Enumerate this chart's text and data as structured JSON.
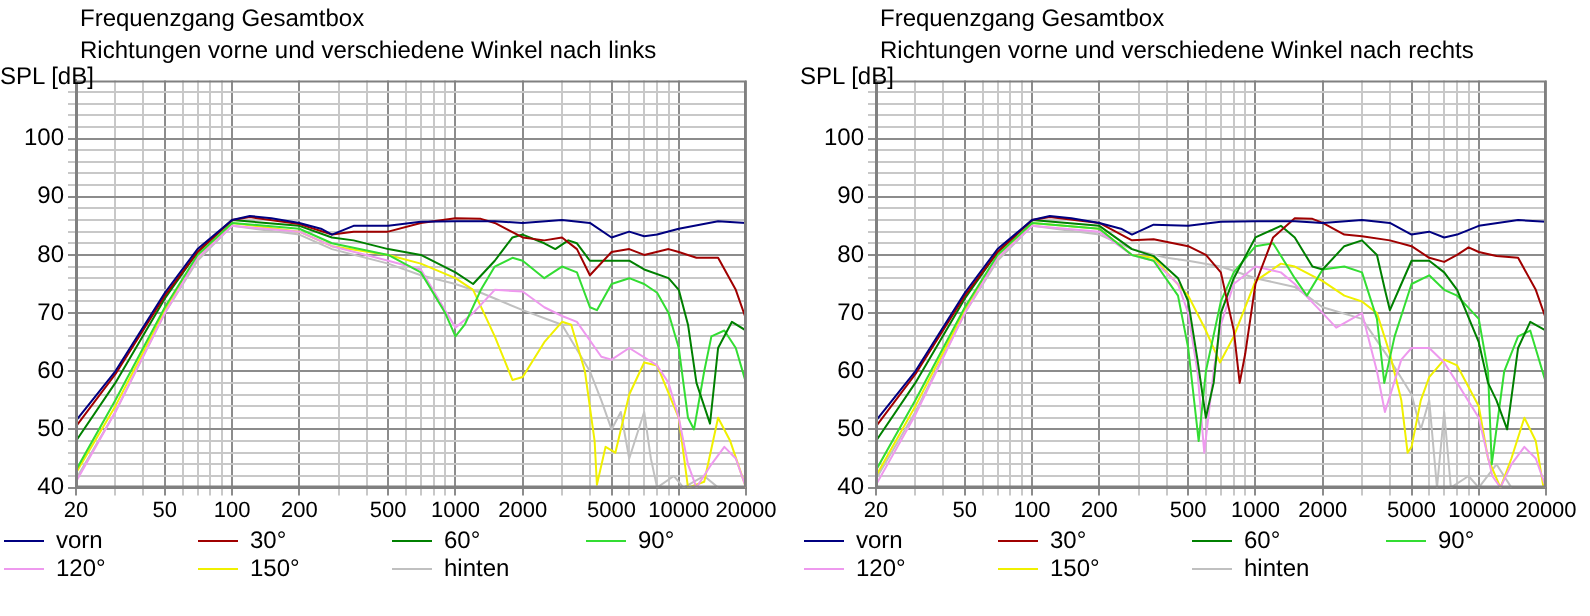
{
  "chart_data": [
    {
      "type": "line",
      "title": "Frequenzgang Gesamtbox",
      "subtitle": "Richtungen vorne und verschiedene Winkel nach links",
      "ylabel": "SPL [dB]",
      "log": "x",
      "grid": true,
      "legend": "bottom",
      "marker": "none",
      "line_style": "solid",
      "xlim": [
        20,
        20000
      ],
      "xticks": [
        20,
        {
          "value": 30,
          "label": null
        },
        {
          "value": 40,
          "label": null
        },
        50,
        {
          "value": 60,
          "label": null
        },
        {
          "value": 70,
          "label": null
        },
        {
          "value": 80,
          "label": null
        },
        {
          "value": 90,
          "label": null
        },
        100,
        200,
        {
          "value": 300,
          "label": null
        },
        {
          "value": 400,
          "label": null
        },
        500,
        {
          "value": 600,
          "label": null
        },
        {
          "value": 700,
          "label": null
        },
        {
          "value": 800,
          "label": null
        },
        {
          "value": 900,
          "label": null
        },
        1000,
        2000,
        {
          "value": 3000,
          "label": null
        },
        {
          "value": 4000,
          "label": null
        },
        5000,
        {
          "value": 6000,
          "label": null
        },
        {
          "value": 7000,
          "label": null
        },
        {
          "value": 8000,
          "label": null
        },
        {
          "value": 9000,
          "label": null
        },
        10000,
        20000
      ],
      "ylim": [
        40,
        110
      ],
      "yticks": [
        40,
        {
          "value": 42,
          "label": null
        },
        {
          "value": 44,
          "label": null
        },
        {
          "value": 46,
          "label": null
        },
        {
          "value": 48,
          "label": null
        },
        50,
        {
          "value": 52,
          "label": null
        },
        {
          "value": 54,
          "label": null
        },
        {
          "value": 56,
          "label": null
        },
        {
          "value": 58,
          "label": null
        },
        60,
        {
          "value": 62,
          "label": null
        },
        {
          "value": 64,
          "label": null
        },
        {
          "value": 66,
          "label": null
        },
        {
          "value": 68,
          "label": null
        },
        70,
        {
          "value": 72,
          "label": null
        },
        {
          "value": 74,
          "label": null
        },
        {
          "value": 76,
          "label": null
        },
        {
          "value": 78,
          "label": null
        },
        80,
        {
          "value": 82,
          "label": null
        },
        {
          "value": 84,
          "label": null
        },
        {
          "value": 86,
          "label": null
        },
        {
          "value": 88,
          "label": null
        },
        90,
        {
          "value": 92,
          "label": null
        },
        {
          "value": 94,
          "label": null
        },
        {
          "value": 96,
          "label": null
        },
        {
          "value": 98,
          "label": null
        },
        100,
        {
          "value": 102,
          "label": null
        },
        {
          "value": 104,
          "label": null
        },
        {
          "value": 106,
          "label": null
        },
        {
          "value": 108,
          "label": null
        }
      ],
      "series": [
        {
          "name": "vorn",
          "color": "#000080",
          "x": [
            20,
            30,
            50,
            70,
            100,
            120,
            150,
            200,
            250,
            280,
            350,
            500,
            700,
            1000,
            1500,
            2000,
            3000,
            4000,
            5000,
            6000,
            7000,
            8000,
            10000,
            15000,
            20000
          ],
          "values": [
            51.5,
            60,
            73.5,
            81,
            86,
            86.7,
            86.3,
            85.5,
            84.5,
            83.5,
            85,
            85,
            85.7,
            85.8,
            85.8,
            85.5,
            86,
            85.5,
            83,
            84,
            83.2,
            83.5,
            84.5,
            85.8,
            85.5
          ]
        },
        {
          "name": "30°",
          "color": "#a00000",
          "x": [
            20,
            30,
            50,
            70,
            100,
            120,
            200,
            280,
            350,
            500,
            700,
            1000,
            1300,
            1500,
            2000,
            2500,
            3000,
            3500,
            4000,
            5000,
            6000,
            7000,
            9000,
            10000,
            12000,
            15000,
            18000,
            20000
          ],
          "values": [
            50.5,
            59.5,
            73,
            80.5,
            86,
            86.5,
            85.3,
            83.5,
            84,
            84,
            85.5,
            86.3,
            86.2,
            85.5,
            83,
            82.5,
            83,
            81,
            76.5,
            80.5,
            81,
            80,
            81,
            80.5,
            79.5,
            79.5,
            74,
            69
          ]
        },
        {
          "name": "60°",
          "color": "#008000",
          "x": [
            20,
            30,
            50,
            70,
            100,
            200,
            280,
            350,
            500,
            700,
            1000,
            1200,
            1500,
            1800,
            2000,
            2500,
            2800,
            3200,
            3500,
            4000,
            5000,
            6000,
            7000,
            9000,
            10000,
            11000,
            12000,
            13800,
            15000,
            17300,
            20000
          ],
          "values": [
            48,
            58,
            72.5,
            80.5,
            86,
            85,
            83,
            82.5,
            81,
            80,
            77,
            75,
            79,
            83,
            83.5,
            82,
            81,
            82.5,
            82,
            79,
            79,
            79,
            77.5,
            76,
            74,
            68,
            58,
            51,
            64,
            68.5,
            67
          ]
        },
        {
          "name": "90°",
          "color": "#33dd33",
          "x": [
            20,
            30,
            50,
            70,
            100,
            200,
            280,
            500,
            700,
            900,
            1000,
            1100,
            1300,
            1500,
            1800,
            2000,
            2500,
            3000,
            3500,
            4000,
            4300,
            5000,
            6000,
            7000,
            8000,
            9000,
            10000,
            11000,
            11700,
            13000,
            14000,
            16000,
            18000,
            20000
          ],
          "values": [
            43,
            55,
            71,
            80,
            85.5,
            84.5,
            82,
            80,
            77,
            70,
            66,
            68,
            74,
            78,
            79.5,
            79,
            76,
            78,
            77,
            71,
            70.5,
            75,
            76,
            75,
            73.5,
            70,
            64,
            52,
            50,
            60,
            66,
            67,
            64,
            58
          ]
        },
        {
          "name": "120°",
          "color": "#ee99ee",
          "x": [
            20,
            30,
            50,
            70,
            100,
            200,
            280,
            500,
            700,
            1000,
            1200,
            1500,
            2000,
            2500,
            3000,
            3500,
            4500,
            5000,
            6000,
            8000,
            9000,
            10000,
            11000,
            12000,
            14000,
            16000,
            18000,
            20000
          ],
          "values": [
            41,
            53,
            70,
            79.5,
            85,
            84,
            81.5,
            79,
            77.5,
            67.5,
            70,
            74,
            73.7,
            71,
            69.5,
            68.5,
            62.5,
            62,
            64,
            61,
            58,
            52,
            44,
            40,
            44,
            47,
            45,
            40
          ]
        },
        {
          "name": "150°",
          "color": "#f0f000",
          "x": [
            20,
            30,
            50,
            70,
            100,
            200,
            280,
            500,
            700,
            1000,
            1200,
            1500,
            1800,
            2000,
            2500,
            3000,
            3300,
            3800,
            4200,
            4300,
            4700,
            5200,
            6000,
            7000,
            8000,
            10000,
            11000,
            13000,
            15000,
            17000,
            20000
          ],
          "values": [
            42.5,
            54,
            70.5,
            79.5,
            85.5,
            84,
            81.5,
            80,
            78.5,
            76,
            74,
            66,
            58.5,
            59,
            65,
            68.5,
            68,
            60,
            48,
            40.5,
            47,
            46,
            56,
            61.5,
            61,
            52,
            40,
            41,
            52,
            48,
            40
          ]
        },
        {
          "name": "hinten",
          "color": "#c0c0c0",
          "x": [
            20,
            30,
            50,
            70,
            100,
            200,
            280,
            500,
            700,
            1000,
            1300,
            1500,
            2000,
            3000,
            4000,
            4500,
            5000,
            5500,
            6000,
            7000,
            7500,
            8000,
            9500,
            10500,
            13000,
            15000
          ],
          "values": [
            41.5,
            53,
            70,
            79,
            85,
            83.5,
            81,
            78.5,
            76.5,
            75,
            73.5,
            72.5,
            70.5,
            68,
            60,
            55,
            50,
            53,
            45,
            53,
            45,
            40,
            42,
            40,
            42,
            40
          ]
        }
      ]
    },
    {
      "type": "line",
      "title": "Frequenzgang Gesamtbox",
      "subtitle": "Richtungen vorne und verschiedene Winkel nach rechts",
      "ylabel": "SPL [dB]",
      "log": "x",
      "grid": true,
      "legend": "bottom",
      "marker": "none",
      "line_style": "solid",
      "xlim": [
        20,
        20000
      ],
      "xticks": [
        20,
        {
          "value": 30,
          "label": null
        },
        {
          "value": 40,
          "label": null
        },
        50,
        {
          "value": 60,
          "label": null
        },
        {
          "value": 70,
          "label": null
        },
        {
          "value": 80,
          "label": null
        },
        {
          "value": 90,
          "label": null
        },
        100,
        200,
        {
          "value": 300,
          "label": null
        },
        {
          "value": 400,
          "label": null
        },
        500,
        {
          "value": 600,
          "label": null
        },
        {
          "value": 700,
          "label": null
        },
        {
          "value": 800,
          "label": null
        },
        {
          "value": 900,
          "label": null
        },
        1000,
        2000,
        {
          "value": 3000,
          "label": null
        },
        {
          "value": 4000,
          "label": null
        },
        5000,
        {
          "value": 6000,
          "label": null
        },
        {
          "value": 7000,
          "label": null
        },
        {
          "value": 8000,
          "label": null
        },
        {
          "value": 9000,
          "label": null
        },
        10000,
        20000
      ],
      "ylim": [
        40,
        110
      ],
      "yticks": [
        40,
        {
          "value": 42,
          "label": null
        },
        {
          "value": 44,
          "label": null
        },
        {
          "value": 46,
          "label": null
        },
        {
          "value": 48,
          "label": null
        },
        50,
        {
          "value": 52,
          "label": null
        },
        {
          "value": 54,
          "label": null
        },
        {
          "value": 56,
          "label": null
        },
        {
          "value": 58,
          "label": null
        },
        60,
        {
          "value": 62,
          "label": null
        },
        {
          "value": 64,
          "label": null
        },
        {
          "value": 66,
          "label": null
        },
        {
          "value": 68,
          "label": null
        },
        70,
        {
          "value": 72,
          "label": null
        },
        {
          "value": 74,
          "label": null
        },
        {
          "value": 76,
          "label": null
        },
        {
          "value": 78,
          "label": null
        },
        80,
        {
          "value": 82,
          "label": null
        },
        {
          "value": 84,
          "label": null
        },
        {
          "value": 86,
          "label": null
        },
        {
          "value": 88,
          "label": null
        },
        90,
        {
          "value": 92,
          "label": null
        },
        {
          "value": 94,
          "label": null
        },
        {
          "value": 96,
          "label": null
        },
        {
          "value": 98,
          "label": null
        },
        100,
        {
          "value": 102,
          "label": null
        },
        {
          "value": 104,
          "label": null
        },
        {
          "value": 106,
          "label": null
        },
        {
          "value": 108,
          "label": null
        }
      ],
      "series": [
        {
          "name": "vorn",
          "color": "#000080",
          "x": [
            20,
            30,
            50,
            70,
            100,
            120,
            150,
            200,
            250,
            280,
            350,
            500,
            700,
            1000,
            1500,
            2000,
            3000,
            4000,
            5000,
            6000,
            7000,
            8000,
            10000,
            15000,
            20000
          ],
          "values": [
            51.5,
            60,
            73.5,
            81,
            86,
            86.7,
            86.3,
            85.5,
            84.5,
            83.5,
            85.2,
            85,
            85.7,
            85.8,
            85.8,
            85.5,
            86,
            85.5,
            83.5,
            84,
            83,
            83.5,
            85,
            86,
            85.7
          ]
        },
        {
          "name": "30°",
          "color": "#a00000",
          "x": [
            20,
            30,
            50,
            70,
            100,
            120,
            200,
            280,
            350,
            500,
            600,
            700,
            800,
            850,
            900,
            1000,
            1200,
            1500,
            1800,
            2000,
            2500,
            3000,
            4000,
            5000,
            6000,
            7000,
            8000,
            9000,
            10000,
            12000,
            15000,
            18000,
            20000
          ],
          "values": [
            50.5,
            59.5,
            73,
            80.5,
            86,
            86.5,
            85.5,
            82.5,
            82.7,
            81.5,
            80,
            77,
            67,
            58,
            63,
            75,
            83,
            86.3,
            86.2,
            85.5,
            83.5,
            83.2,
            82.5,
            81.5,
            79.5,
            78.8,
            80,
            81.3,
            80.5,
            79.8,
            79.5,
            74,
            69
          ]
        },
        {
          "name": "60°",
          "color": "#008000",
          "x": [
            20,
            30,
            50,
            70,
            100,
            200,
            280,
            350,
            450,
            500,
            550,
            600,
            650,
            700,
            800,
            1000,
            1300,
            1500,
            1800,
            2000,
            2500,
            3000,
            3500,
            3800,
            4000,
            4500,
            5000,
            6000,
            7000,
            8000,
            10000,
            11000,
            12000,
            13400,
            15000,
            17000,
            20000
          ],
          "values": [
            48,
            58,
            72.5,
            80.5,
            86,
            85,
            81,
            79.8,
            76,
            72,
            62,
            52,
            58,
            70,
            76,
            83,
            85,
            83,
            78,
            77.5,
            81.5,
            82.5,
            80,
            74,
            70.5,
            75,
            79,
            79,
            77,
            74,
            65,
            58,
            55,
            50,
            64,
            68.5,
            67
          ]
        },
        {
          "name": "90°",
          "color": "#33dd33",
          "x": [
            20,
            30,
            50,
            70,
            100,
            200,
            280,
            350,
            450,
            500,
            557,
            600,
            700,
            800,
            1000,
            1200,
            1500,
            1700,
            2000,
            2500,
            3000,
            3500,
            3776,
            4200,
            5000,
            6000,
            7000,
            8000,
            10000,
            11000,
            11430,
            13000,
            15000,
            17000,
            20000
          ],
          "values": [
            43,
            55,
            71,
            80,
            85.5,
            84.5,
            80,
            79,
            73,
            64,
            48,
            60,
            72,
            77,
            81.5,
            82,
            76,
            73,
            77.5,
            78,
            77,
            69,
            58,
            66,
            75,
            76.5,
            74,
            73,
            69,
            60,
            44,
            60,
            66,
            67,
            58
          ]
        },
        {
          "name": "120°",
          "color": "#ee99ee",
          "x": [
            20,
            30,
            50,
            70,
            100,
            200,
            280,
            350,
            450,
            500,
            550,
            590,
            650,
            700,
            800,
            1000,
            1300,
            1500,
            2000,
            2300,
            3000,
            3500,
            3800,
            4500,
            5000,
            6000,
            7000,
            8000,
            10000,
            11500,
            12500,
            14000,
            16000,
            18000,
            20000
          ],
          "values": [
            40.5,
            52.5,
            70,
            79.5,
            85,
            84,
            80,
            79,
            75,
            70,
            60,
            46,
            60,
            68,
            75,
            78,
            77,
            75,
            70,
            67.5,
            70,
            60,
            53,
            62,
            64,
            64,
            61.5,
            58,
            52,
            42,
            40,
            44,
            47,
            45,
            40
          ]
        },
        {
          "name": "150°",
          "color": "#f0f000",
          "x": [
            20,
            30,
            50,
            70,
            100,
            200,
            280,
            350,
            500,
            600,
            694,
            800,
            1000,
            1300,
            1500,
            2000,
            2500,
            3000,
            3500,
            4000,
            4500,
            4800,
            5000,
            5500,
            6000,
            7000,
            8000,
            10000,
            11000,
            12500,
            14000,
            16000,
            18000,
            19500
          ],
          "values": [
            42,
            54,
            70.5,
            79.5,
            85.5,
            84.5,
            80,
            79.5,
            73,
            67,
            61.5,
            66,
            75.5,
            78.5,
            78,
            75.5,
            73,
            72,
            70,
            63,
            55,
            46,
            47,
            55,
            59,
            62,
            61,
            54,
            45,
            40,
            45,
            52,
            48,
            40
          ]
        },
        {
          "name": "hinten",
          "color": "#c0c0c0",
          "x": [
            20,
            30,
            50,
            70,
            100,
            200,
            280,
            400,
            500,
            700,
            1000,
            1500,
            2000,
            3000,
            4000,
            5000,
            5500,
            6000,
            6500,
            7000,
            7500,
            9000,
            10000,
            12000,
            14000
          ],
          "values": [
            41.5,
            53,
            70,
            79,
            85,
            83.5,
            81,
            79.5,
            79,
            78,
            76,
            74.5,
            71,
            69,
            62,
            56,
            50,
            55,
            40,
            53,
            40,
            42,
            40,
            44,
            40
          ]
        }
      ]
    }
  ]
}
